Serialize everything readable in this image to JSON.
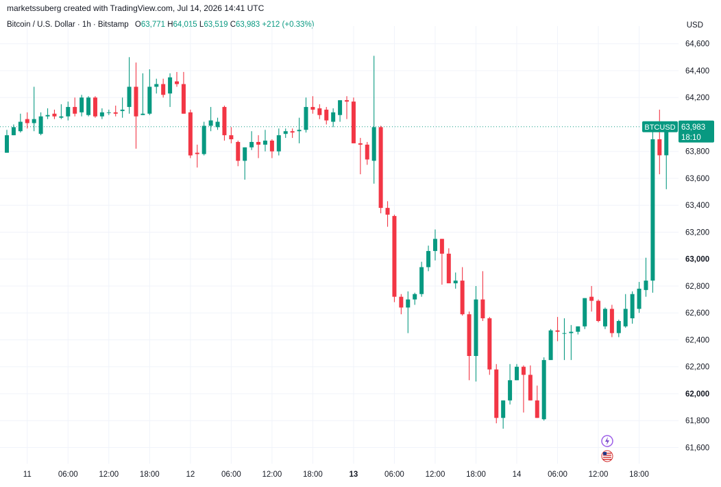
{
  "header": {
    "credit": "marketssuberg created with TradingView.com, Jul 14, 2026 14:41 UTC",
    "symbol": "Bitcoin / U.S. Dollar · 1h · Bitstamp",
    "o_label": "O",
    "o_value": "63,771",
    "h_label": "H",
    "h_value": "64,015",
    "l_label": "L",
    "l_value": "63,519",
    "c_label": "C",
    "c_value": "63,983",
    "change": "+212 (+0.33%)",
    "currency": "USD"
  },
  "price_tag": {
    "ticker": "BTCUSD",
    "price": "63,983",
    "countdown": "18:10"
  },
  "icons": [
    "lightning-icon",
    "us-flag-icon"
  ],
  "colors": {
    "up": "#089981",
    "down": "#f23645",
    "grid": "#f0f3fa",
    "last_price_line": "#089981"
  },
  "chart_data": {
    "type": "candlestick",
    "title": "Bitcoin / U.S. Dollar · 1h · Bitstamp",
    "ylim": [
      61480,
      64680
    ],
    "y_ticks": [
      {
        "value": 64600,
        "label": "64,600",
        "bold": false
      },
      {
        "value": 64400,
        "label": "64,400",
        "bold": false
      },
      {
        "value": 64200,
        "label": "64,200",
        "bold": false
      },
      {
        "value": 63800,
        "label": "63,800",
        "bold": false
      },
      {
        "value": 63600,
        "label": "63,600",
        "bold": false
      },
      {
        "value": 63400,
        "label": "63,400",
        "bold": false
      },
      {
        "value": 63200,
        "label": "63,200",
        "bold": false
      },
      {
        "value": 63000,
        "label": "63,000",
        "bold": true
      },
      {
        "value": 62800,
        "label": "62,800",
        "bold": false
      },
      {
        "value": 62600,
        "label": "62,600",
        "bold": false
      },
      {
        "value": 62400,
        "label": "62,400",
        "bold": false
      },
      {
        "value": 62200,
        "label": "62,200",
        "bold": false
      },
      {
        "value": 62000,
        "label": "62,000",
        "bold": true
      },
      {
        "value": 61800,
        "label": "61,800",
        "bold": false
      },
      {
        "value": 61600,
        "label": "61,600",
        "bold": false
      }
    ],
    "x_ticks": [
      {
        "label": "11",
        "bold": false,
        "bar": 3
      },
      {
        "label": "06:00",
        "bold": false,
        "bar": 9
      },
      {
        "label": "12:00",
        "bold": false,
        "bar": 15
      },
      {
        "label": "18:00",
        "bold": false,
        "bar": 21
      },
      {
        "label": "12",
        "bold": false,
        "bar": 27
      },
      {
        "label": "06:00",
        "bold": false,
        "bar": 33
      },
      {
        "label": "12:00",
        "bold": false,
        "bar": 39
      },
      {
        "label": "18:00",
        "bold": false,
        "bar": 45
      },
      {
        "label": "13",
        "bold": true,
        "bar": 51
      },
      {
        "label": "06:00",
        "bold": false,
        "bar": 57
      },
      {
        "label": "12:00",
        "bold": false,
        "bar": 63
      },
      {
        "label": "18:00",
        "bold": false,
        "bar": 69
      },
      {
        "label": "14",
        "bold": false,
        "bar": 75
      },
      {
        "label": "06:00",
        "bold": false,
        "bar": 81
      },
      {
        "label": "12:00",
        "bold": false,
        "bar": 87
      },
      {
        "label": "18:00",
        "bold": false,
        "bar": 93
      }
    ],
    "last_price": 63983,
    "candles": [
      {
        "o": 63790,
        "h": 63960,
        "l": 63790,
        "c": 63920
      },
      {
        "o": 63920,
        "h": 64000,
        "l": 63950,
        "c": 63980
      },
      {
        "o": 63950,
        "h": 64080,
        "l": 63940,
        "c": 64020
      },
      {
        "o": 64040,
        "h": 64090,
        "l": 63970,
        "c": 64010
      },
      {
        "o": 64010,
        "h": 64280,
        "l": 63950,
        "c": 64040
      },
      {
        "o": 63930,
        "h": 64090,
        "l": 63920,
        "c": 64060
      },
      {
        "o": 64060,
        "h": 64120,
        "l": 64040,
        "c": 64070
      },
      {
        "o": 64080,
        "h": 64110,
        "l": 64040,
        "c": 64060
      },
      {
        "o": 64050,
        "h": 64150,
        "l": 64040,
        "c": 64060
      },
      {
        "o": 64060,
        "h": 64170,
        "l": 64030,
        "c": 64130
      },
      {
        "o": 64130,
        "h": 64200,
        "l": 64060,
        "c": 64080
      },
      {
        "o": 64090,
        "h": 64220,
        "l": 64060,
        "c": 64200
      },
      {
        "o": 64070,
        "h": 64210,
        "l": 64060,
        "c": 64200
      },
      {
        "o": 64200,
        "h": 64210,
        "l": 64050,
        "c": 64060
      },
      {
        "o": 64060,
        "h": 64120,
        "l": 64040,
        "c": 64090
      },
      {
        "o": 64090,
        "h": 64110,
        "l": 64070,
        "c": 64090
      },
      {
        "o": 64090,
        "h": 64140,
        "l": 64060,
        "c": 64080
      },
      {
        "o": 64100,
        "h": 64200,
        "l": 64050,
        "c": 64110
      },
      {
        "o": 64130,
        "h": 64500,
        "l": 64080,
        "c": 64280
      },
      {
        "o": 64280,
        "h": 64460,
        "l": 63820,
        "c": 64060
      },
      {
        "o": 64070,
        "h": 64380,
        "l": 64070,
        "c": 64080
      },
      {
        "o": 64080,
        "h": 64410,
        "l": 64070,
        "c": 64280
      },
      {
        "o": 64280,
        "h": 64340,
        "l": 64230,
        "c": 64300
      },
      {
        "o": 64300,
        "h": 64340,
        "l": 64200,
        "c": 64220
      },
      {
        "o": 64230,
        "h": 64380,
        "l": 64130,
        "c": 64350
      },
      {
        "o": 64320,
        "h": 64390,
        "l": 64280,
        "c": 64300
      },
      {
        "o": 64300,
        "h": 64390,
        "l": 64080,
        "c": 64080
      },
      {
        "o": 64090,
        "h": 64110,
        "l": 63750,
        "c": 63770
      },
      {
        "o": 63790,
        "h": 63850,
        "l": 63680,
        "c": 63780
      },
      {
        "o": 63780,
        "h": 64020,
        "l": 63770,
        "c": 63990
      },
      {
        "o": 63990,
        "h": 64130,
        "l": 63950,
        "c": 64030
      },
      {
        "o": 63980,
        "h": 64050,
        "l": 63960,
        "c": 64020
      },
      {
        "o": 64130,
        "h": 64140,
        "l": 63880,
        "c": 63920
      },
      {
        "o": 63920,
        "h": 63980,
        "l": 63860,
        "c": 63890
      },
      {
        "o": 63870,
        "h": 63880,
        "l": 63690,
        "c": 63730
      },
      {
        "o": 63730,
        "h": 63800,
        "l": 63590,
        "c": 63830
      },
      {
        "o": 63830,
        "h": 63950,
        "l": 63810,
        "c": 63870
      },
      {
        "o": 63870,
        "h": 63920,
        "l": 63750,
        "c": 63850
      },
      {
        "o": 63850,
        "h": 63960,
        "l": 63800,
        "c": 63880
      },
      {
        "o": 63880,
        "h": 63890,
        "l": 63750,
        "c": 63800
      },
      {
        "o": 63800,
        "h": 63970,
        "l": 63770,
        "c": 63920
      },
      {
        "o": 63930,
        "h": 63970,
        "l": 63900,
        "c": 63950
      },
      {
        "o": 63950,
        "h": 63970,
        "l": 63900,
        "c": 63940
      },
      {
        "o": 63950,
        "h": 64050,
        "l": 63860,
        "c": 63960
      },
      {
        "o": 63960,
        "h": 64200,
        "l": 63940,
        "c": 64130
      },
      {
        "o": 64130,
        "h": 64210,
        "l": 64080,
        "c": 64110
      },
      {
        "o": 64120,
        "h": 64150,
        "l": 64040,
        "c": 64070
      },
      {
        "o": 64110,
        "h": 64130,
        "l": 64000,
        "c": 64030
      },
      {
        "o": 64020,
        "h": 64120,
        "l": 63980,
        "c": 64090
      },
      {
        "o": 64070,
        "h": 64170,
        "l": 64020,
        "c": 64180
      },
      {
        "o": 64180,
        "h": 64210,
        "l": 64040,
        "c": 64170
      },
      {
        "o": 64170,
        "h": 64200,
        "l": 63860,
        "c": 63860
      },
      {
        "o": 63860,
        "h": 63900,
        "l": 63630,
        "c": 63850
      },
      {
        "o": 63850,
        "h": 63870,
        "l": 63700,
        "c": 63740
      },
      {
        "o": 63730,
        "h": 64510,
        "l": 63560,
        "c": 63980
      },
      {
        "o": 63980,
        "h": 63990,
        "l": 63340,
        "c": 63380
      },
      {
        "o": 63380,
        "h": 63430,
        "l": 63240,
        "c": 63330
      },
      {
        "o": 63320,
        "h": 63330,
        "l": 62680,
        "c": 62720
      },
      {
        "o": 62720,
        "h": 62740,
        "l": 62590,
        "c": 62640
      },
      {
        "o": 62640,
        "h": 62760,
        "l": 62450,
        "c": 62700
      },
      {
        "o": 62700,
        "h": 62750,
        "l": 62660,
        "c": 62740
      },
      {
        "o": 62740,
        "h": 62980,
        "l": 62720,
        "c": 62940
      },
      {
        "o": 62940,
        "h": 63100,
        "l": 62910,
        "c": 63060
      },
      {
        "o": 63060,
        "h": 63220,
        "l": 62990,
        "c": 63150
      },
      {
        "o": 63150,
        "h": 63120,
        "l": 62810,
        "c": 63040
      },
      {
        "o": 63040,
        "h": 63080,
        "l": 62820,
        "c": 62820
      },
      {
        "o": 62820,
        "h": 62900,
        "l": 62780,
        "c": 62840
      },
      {
        "o": 62840,
        "h": 62940,
        "l": 62580,
        "c": 62590
      },
      {
        "o": 62590,
        "h": 62610,
        "l": 62100,
        "c": 62280
      },
      {
        "o": 62280,
        "h": 62800,
        "l": 62090,
        "c": 62700
      },
      {
        "o": 62700,
        "h": 62910,
        "l": 62540,
        "c": 62560
      },
      {
        "o": 62560,
        "h": 62570,
        "l": 62140,
        "c": 62180
      },
      {
        "o": 62180,
        "h": 62220,
        "l": 61780,
        "c": 61820
      },
      {
        "o": 61820,
        "h": 61950,
        "l": 61740,
        "c": 61950
      },
      {
        "o": 61950,
        "h": 62220,
        "l": 61920,
        "c": 62100
      },
      {
        "o": 62100,
        "h": 62220,
        "l": 62100,
        "c": 62200
      },
      {
        "o": 62200,
        "h": 62210,
        "l": 61860,
        "c": 62140
      },
      {
        "o": 62140,
        "h": 62210,
        "l": 61950,
        "c": 61950
      },
      {
        "o": 61950,
        "h": 62060,
        "l": 61820,
        "c": 61820
      },
      {
        "o": 61810,
        "h": 62270,
        "l": 61800,
        "c": 62250
      },
      {
        "o": 62250,
        "h": 62480,
        "l": 62250,
        "c": 62470
      },
      {
        "o": 62470,
        "h": 62570,
        "l": 62390,
        "c": 62460
      },
      {
        "o": 62450,
        "h": 62560,
        "l": 62250,
        "c": 62450
      },
      {
        "o": 62450,
        "h": 62510,
        "l": 62250,
        "c": 62460
      },
      {
        "o": 62460,
        "h": 62500,
        "l": 62440,
        "c": 62500
      },
      {
        "o": 62500,
        "h": 62710,
        "l": 62480,
        "c": 62710
      },
      {
        "o": 62720,
        "h": 62800,
        "l": 62610,
        "c": 62690
      },
      {
        "o": 62690,
        "h": 62700,
        "l": 62530,
        "c": 62540
      },
      {
        "o": 62500,
        "h": 62640,
        "l": 62480,
        "c": 62630
      },
      {
        "o": 62630,
        "h": 62660,
        "l": 62420,
        "c": 62450
      },
      {
        "o": 62450,
        "h": 62550,
        "l": 62420,
        "c": 62540
      },
      {
        "o": 62500,
        "h": 62740,
        "l": 62490,
        "c": 62630
      },
      {
        "o": 62560,
        "h": 62760,
        "l": 62520,
        "c": 62740
      },
      {
        "o": 62630,
        "h": 62830,
        "l": 62600,
        "c": 62780
      },
      {
        "o": 62770,
        "h": 63010,
        "l": 62720,
        "c": 62840
      },
      {
        "o": 62840,
        "h": 64000,
        "l": 62750,
        "c": 63890
      },
      {
        "o": 63890,
        "h": 64110,
        "l": 63630,
        "c": 63771
      },
      {
        "o": 63771,
        "h": 64015,
        "l": 63519,
        "c": 63983
      }
    ]
  }
}
